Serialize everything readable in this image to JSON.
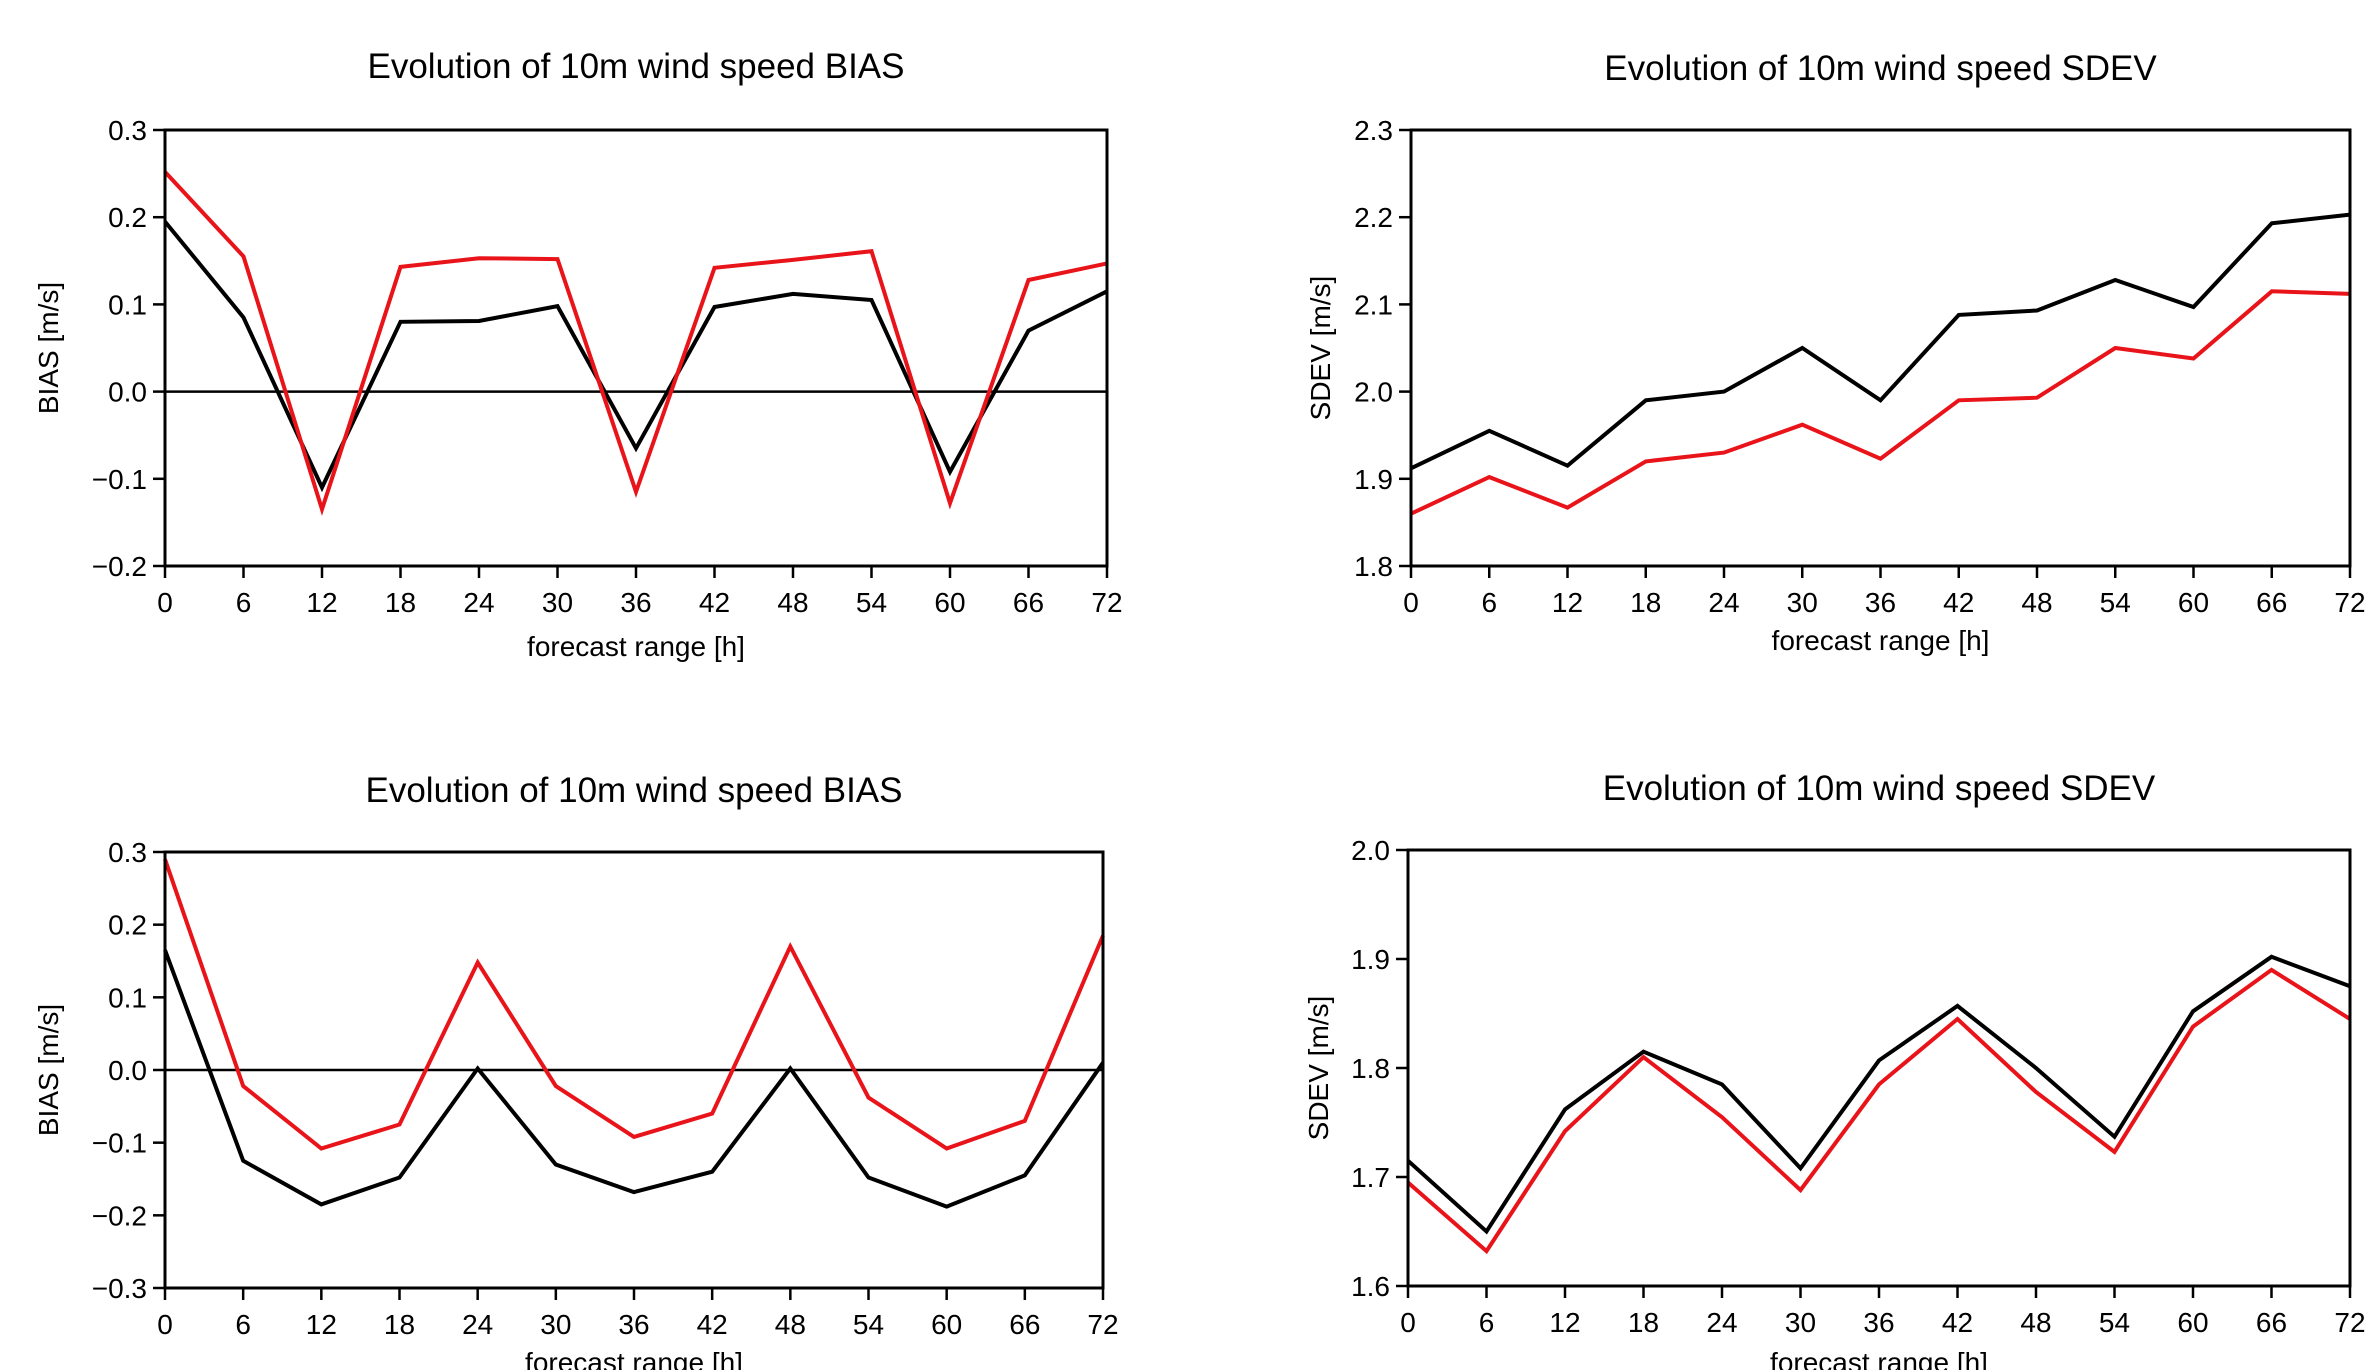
{
  "colors": {
    "series_a": "#000000",
    "series_b": "#e8141a",
    "axis": "#000000"
  },
  "chart_data": [
    {
      "type": "line",
      "title": "Evolution of 10m wind speed BIAS",
      "xlabel": "forecast range [h]",
      "ylabel": "BIAS [m/s]",
      "xlim": [
        0,
        72
      ],
      "ylim": [
        -0.2,
        0.3
      ],
      "xticks": [
        0,
        6,
        12,
        18,
        24,
        30,
        36,
        42,
        48,
        54,
        60,
        66,
        72
      ],
      "yticks": [
        -0.2,
        -0.1,
        0.0,
        0.1,
        0.2,
        0.3
      ],
      "ytick_labels": [
        "−0.2",
        "−0.1",
        "0.0",
        "0.1",
        "0.2",
        "0.3"
      ],
      "zero_line": true,
      "grid": false,
      "x": [
        0,
        6,
        12,
        18,
        24,
        30,
        36,
        42,
        48,
        54,
        60,
        66,
        72
      ],
      "series": [
        {
          "color": "#000000",
          "values": [
            0.195,
            0.085,
            -0.11,
            0.08,
            0.081,
            0.098,
            -0.065,
            0.097,
            0.112,
            0.105,
            -0.092,
            0.07,
            0.115
          ]
        },
        {
          "color": "#e8141a",
          "values": [
            0.252,
            0.155,
            -0.135,
            0.143,
            0.153,
            0.152,
            -0.115,
            0.142,
            0.151,
            0.161,
            -0.128,
            0.128,
            0.147
          ]
        }
      ]
    },
    {
      "type": "line",
      "title": "Evolution of 10m wind speed SDEV",
      "xlabel": "forecast range [h]",
      "ylabel": "SDEV [m/s]",
      "xlim": [
        0,
        72
      ],
      "ylim": [
        1.8,
        2.3
      ],
      "xticks": [
        0,
        6,
        12,
        18,
        24,
        30,
        36,
        42,
        48,
        54,
        60,
        66,
        72
      ],
      "yticks": [
        1.8,
        1.9,
        2.0,
        2.1,
        2.2,
        2.3
      ],
      "ytick_labels": [
        "1.8",
        "1.9",
        "2.0",
        "2.1",
        "2.2",
        "2.3"
      ],
      "zero_line": false,
      "grid": false,
      "x": [
        0,
        6,
        12,
        18,
        24,
        30,
        36,
        42,
        48,
        54,
        60,
        66,
        72
      ],
      "series": [
        {
          "color": "#000000",
          "values": [
            1.912,
            1.955,
            1.915,
            1.99,
            2.0,
            2.05,
            1.99,
            2.088,
            2.093,
            2.128,
            2.097,
            2.193,
            2.203
          ]
        },
        {
          "color": "#e8141a",
          "values": [
            1.86,
            1.902,
            1.867,
            1.92,
            1.93,
            1.962,
            1.923,
            1.99,
            1.993,
            2.05,
            2.038,
            2.115,
            2.112
          ]
        }
      ]
    },
    {
      "type": "line",
      "title": "Evolution of 10m wind speed BIAS",
      "xlabel": "forecast range [h]",
      "ylabel": "BIAS [m/s]",
      "xlim": [
        0,
        72
      ],
      "ylim": [
        -0.3,
        0.3
      ],
      "xticks": [
        0,
        6,
        12,
        18,
        24,
        30,
        36,
        42,
        48,
        54,
        60,
        66,
        72
      ],
      "yticks": [
        -0.3,
        -0.2,
        -0.1,
        0.0,
        0.1,
        0.2,
        0.3
      ],
      "ytick_labels": [
        "−0.3",
        "−0.2",
        "−0.1",
        "0.0",
        "0.1",
        "0.2",
        "0.3"
      ],
      "zero_line": true,
      "grid": false,
      "x": [
        0,
        6,
        12,
        18,
        24,
        30,
        36,
        42,
        48,
        54,
        60,
        66,
        72
      ],
      "series": [
        {
          "color": "#000000",
          "values": [
            0.165,
            -0.125,
            -0.185,
            -0.148,
            0.002,
            -0.13,
            -0.168,
            -0.14,
            0.002,
            -0.148,
            -0.188,
            -0.145,
            0.01
          ]
        },
        {
          "color": "#e8141a",
          "values": [
            0.29,
            -0.022,
            -0.108,
            -0.075,
            0.148,
            -0.022,
            -0.092,
            -0.06,
            0.17,
            -0.038,
            -0.108,
            -0.07,
            0.185
          ]
        }
      ]
    },
    {
      "type": "line",
      "title": "Evolution of 10m wind speed SDEV",
      "xlabel": "forecast range [h]",
      "ylabel": "SDEV [m/s]",
      "xlim": [
        0,
        72
      ],
      "ylim": [
        1.6,
        2.0
      ],
      "xticks": [
        0,
        6,
        12,
        18,
        24,
        30,
        36,
        42,
        48,
        54,
        60,
        66,
        72
      ],
      "yticks": [
        1.6,
        1.7,
        1.8,
        1.9,
        2.0
      ],
      "ytick_labels": [
        "1.6",
        "1.7",
        "1.8",
        "1.9",
        "2.0"
      ],
      "zero_line": false,
      "grid": false,
      "x": [
        0,
        6,
        12,
        18,
        24,
        30,
        36,
        42,
        48,
        54,
        60,
        66,
        72
      ],
      "series": [
        {
          "color": "#000000",
          "values": [
            1.715,
            1.65,
            1.762,
            1.815,
            1.785,
            1.708,
            1.807,
            1.857,
            1.8,
            1.737,
            1.852,
            1.902,
            1.875
          ]
        },
        {
          "color": "#e8141a",
          "values": [
            1.695,
            1.632,
            1.742,
            1.81,
            1.755,
            1.688,
            1.785,
            1.845,
            1.778,
            1.723,
            1.838,
            1.89,
            1.845
          ]
        }
      ]
    }
  ]
}
